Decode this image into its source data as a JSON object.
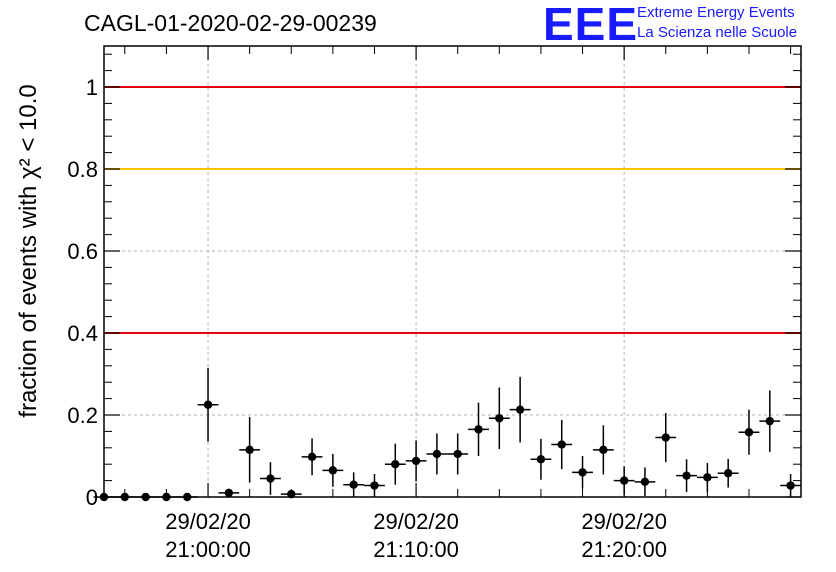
{
  "title": "CAGL-01-2020-02-29-00239",
  "logo": {
    "mark": "EEE",
    "line1": "Extreme Energy Events",
    "line2": "La Scienza nelle Scuole"
  },
  "colors": {
    "threshold_red": "#e8000b",
    "threshold_yellow": "#ffc400",
    "points": "#000000",
    "grid": "#b0b0b0",
    "logo": "#1a1aff"
  },
  "chart_data": {
    "type": "scatter",
    "title": "CAGL-01-2020-02-29-00239",
    "ylabel": "fraction of events with χ² < 10.0",
    "xlabel": "",
    "ylim": [
      0,
      1.1
    ],
    "xlim_minutes_after_2100": [
      -5,
      28.5
    ],
    "grid": true,
    "y_ticks": [
      "0",
      "0.2",
      "0.4",
      "0.6",
      "0.8",
      "1"
    ],
    "x_ticks": [
      {
        "date": "29/02/20",
        "time": "21:00:00"
      },
      {
        "date": "29/02/20",
        "time": "21:10:00"
      },
      {
        "date": "29/02/20",
        "time": "21:20:00"
      }
    ],
    "reference_lines": [
      {
        "y": 1.0,
        "color": "red"
      },
      {
        "y": 0.8,
        "color": "yellow"
      },
      {
        "y": 0.4,
        "color": "red"
      }
    ],
    "series": [
      {
        "x": [
          "20:55",
          "20:56",
          "20:57",
          "20:58",
          "20:59",
          "21:00",
          "21:01",
          "21:02",
          "21:03",
          "21:04",
          "21:05",
          "21:06",
          "21:07",
          "21:08",
          "21:09",
          "21:10",
          "21:11",
          "21:12",
          "21:13",
          "21:14",
          "21:15",
          "21:16",
          "21:17",
          "21:18",
          "21:19",
          "21:20",
          "21:21",
          "21:22",
          "21:23",
          "21:24",
          "21:25",
          "21:26",
          "21:27",
          "21:28"
        ],
        "y": [
          0.0,
          0.0,
          0.0,
          0.0,
          0.0,
          0.225,
          0.01,
          0.115,
          0.045,
          0.007,
          0.098,
          0.065,
          0.03,
          0.028,
          0.08,
          0.088,
          0.105,
          0.105,
          0.165,
          0.192,
          0.213,
          0.092,
          0.128,
          0.06,
          0.115,
          0.04,
          0.037,
          0.145,
          0.052,
          0.048,
          0.058,
          0.158,
          0.185,
          0.028
        ],
        "y_err": [
          0.005,
          0.01,
          0.005,
          0.005,
          0.005,
          0.09,
          0.01,
          0.08,
          0.04,
          0.007,
          0.045,
          0.04,
          0.03,
          0.028,
          0.05,
          0.05,
          0.05,
          0.05,
          0.065,
          0.075,
          0.08,
          0.05,
          0.06,
          0.04,
          0.06,
          0.035,
          0.035,
          0.06,
          0.04,
          0.035,
          0.035,
          0.055,
          0.075,
          0.028
        ]
      }
    ]
  }
}
